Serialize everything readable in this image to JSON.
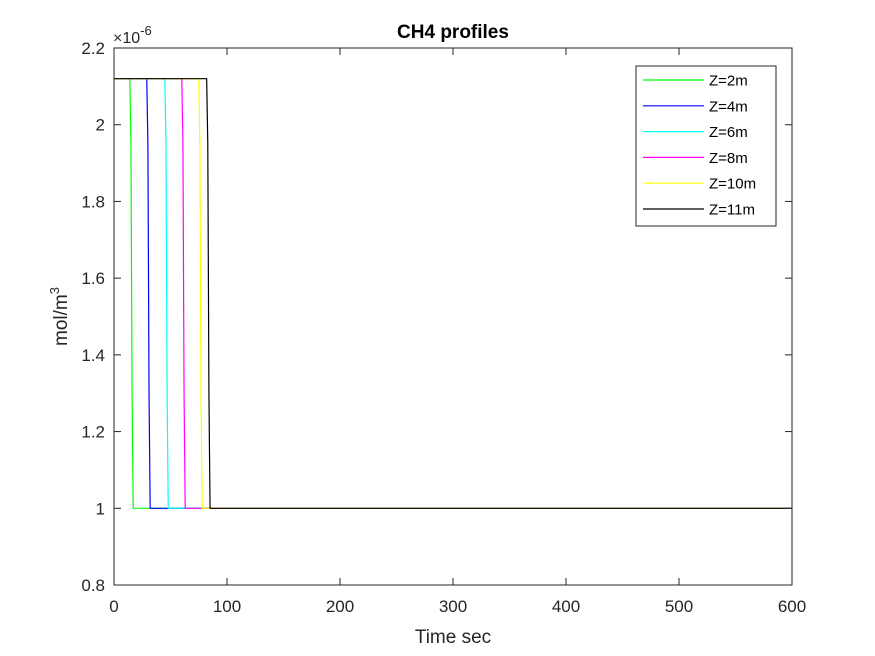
{
  "chart_data": {
    "type": "line",
    "title": "CH4 profiles",
    "xlabel": "Time sec",
    "ylabel_base": "mol/m",
    "ylabel_sup": "3",
    "y_exponent_prefix": "×10",
    "y_exponent_power": "-6",
    "xlim": [
      0,
      600
    ],
    "ylim": [
      0.8,
      2.2
    ],
    "xticks": [
      0,
      100,
      200,
      300,
      400,
      500,
      600
    ],
    "yticks": [
      0.8,
      1.0,
      1.2,
      1.4,
      1.6,
      1.8,
      2.0,
      2.2
    ],
    "xtick_labels": [
      "0",
      "100",
      "200",
      "300",
      "400",
      "500",
      "600"
    ],
    "ytick_labels": [
      "0.8",
      "1",
      "1.2",
      "1.4",
      "1.6",
      "1.8",
      "2",
      "2.2"
    ],
    "legend_position": "top-right",
    "grid": false,
    "series": [
      {
        "name": "Z=2m",
        "color": "#00ff00",
        "x": [
          0,
          14,
          15,
          16,
          17,
          600
        ],
        "y": [
          2.12,
          2.12,
          1.95,
          1.3,
          1.0,
          1.0
        ]
      },
      {
        "name": "Z=4m",
        "color": "#0000ff",
        "x": [
          0,
          29,
          30,
          31,
          32,
          600
        ],
        "y": [
          2.12,
          2.12,
          1.95,
          1.3,
          1.0,
          1.0
        ]
      },
      {
        "name": "Z=6m",
        "color": "#00ffff",
        "x": [
          0,
          45,
          46,
          47,
          48,
          600
        ],
        "y": [
          2.12,
          2.12,
          1.95,
          1.3,
          1.0,
          1.0
        ]
      },
      {
        "name": "Z=8m",
        "color": "#ff00ff",
        "x": [
          0,
          60,
          61,
          62,
          63,
          600
        ],
        "y": [
          2.12,
          2.12,
          1.95,
          1.3,
          1.0,
          1.0
        ]
      },
      {
        "name": "Z=10m",
        "color": "#ffff00",
        "x": [
          0,
          75,
          76,
          77,
          78,
          600
        ],
        "y": [
          2.12,
          2.12,
          1.95,
          1.3,
          1.0,
          1.0
        ]
      },
      {
        "name": "Z=11m",
        "color": "#000000",
        "x": [
          0,
          82,
          83,
          84,
          85,
          600
        ],
        "y": [
          2.12,
          2.12,
          1.95,
          1.3,
          1.0,
          1.0
        ]
      }
    ]
  }
}
